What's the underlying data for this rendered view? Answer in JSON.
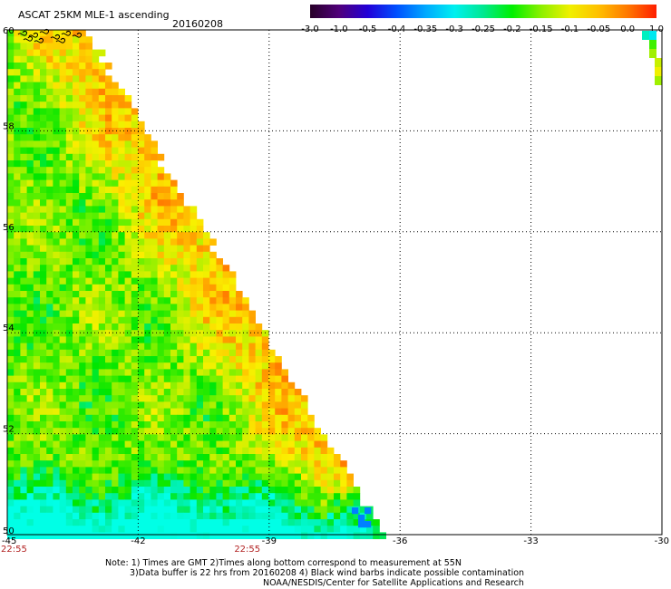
{
  "header": {
    "title": "ASCAT 25KM MLE-1 ascending",
    "date": "20160208"
  },
  "colorbar": {
    "tick_labels": [
      "-3.0",
      "-1.0",
      "-0.5",
      "-0.4",
      "-0.35",
      "-0.3",
      "-0.25",
      "-0.2",
      "-0.15",
      "-0.1",
      "-0.05",
      "0.0",
      "1.0"
    ],
    "colors": [
      "#280028",
      "#50007a",
      "#2200d8",
      "#0050ff",
      "#00a8ff",
      "#00f0f0",
      "#00e890",
      "#00f000",
      "#8cf000",
      "#f0f000",
      "#ffbf00",
      "#ff7800",
      "#ff1e00"
    ]
  },
  "map": {
    "lon_range": [
      -45,
      -30
    ],
    "lat_range": [
      50,
      60
    ],
    "lon_ticks": [
      "-45",
      "-42",
      "-39",
      "-36",
      "-33",
      "-30"
    ],
    "lat_ticks": [
      "52",
      "54",
      "56",
      "58"
    ],
    "lat_top_label": "60",
    "lat_bottom_label": "50",
    "time_labels": [
      "22:55",
      "22:55"
    ]
  },
  "notes": {
    "line1": "Note: 1) Times are GMT 2)Times along bottom correspond to measurement at 55N",
    "line2": "3)Data buffer is 22 hrs from 20160208 4) Black wind barbs indicate possible contamination",
    "line3": "NOAA/NESDIS/Center for Satellite Applications and Research"
  }
}
